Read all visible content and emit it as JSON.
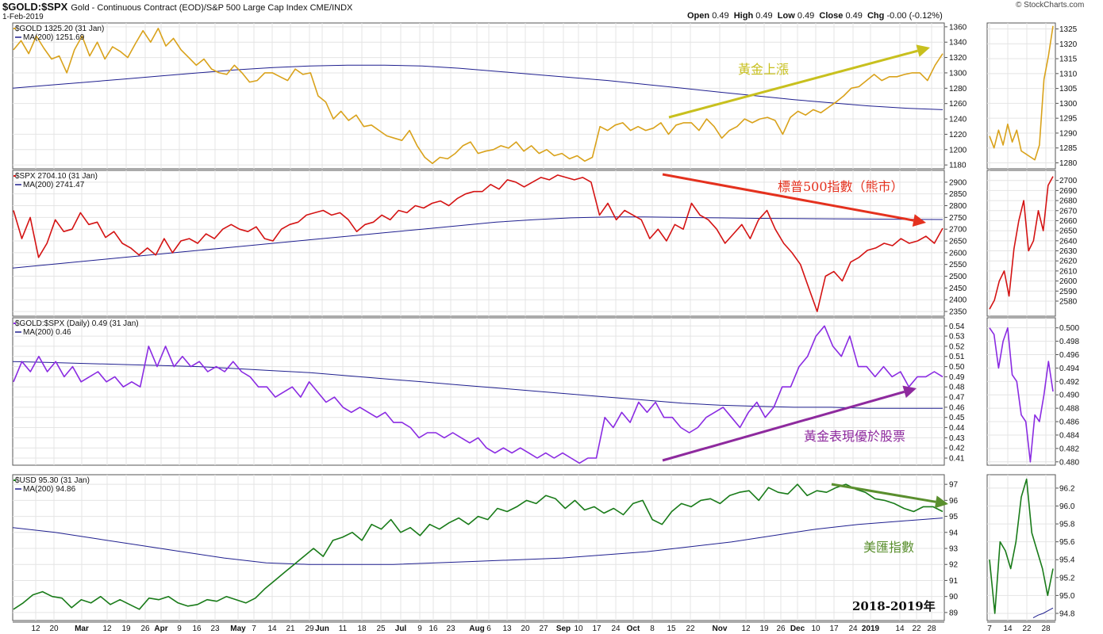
{
  "header": {
    "symbol": "$GOLD:$SPX",
    "description": "Gold - Continuous Contract (EOD)/S&P 500 Large Cap Index  CME/INDX",
    "date": "1-Feb-2019",
    "ohlc": {
      "open_label": "Open",
      "open": "0.49",
      "high_label": "High",
      "high": "0.49",
      "low_label": "Low",
      "low": "0.49",
      "close_label": "Close",
      "close": "0.49",
      "chg_label": "Chg",
      "chg": "-0.00 (-0.12%)"
    },
    "brand": "© StockCharts.com"
  },
  "chart_data": [
    {
      "type": "line",
      "id": "gold",
      "legend": [
        "$GOLD 1325.20 (31 Jan)",
        "MA(200) 1251.69"
      ],
      "ylim": [
        1175,
        1365
      ],
      "yticks": [
        1180,
        1200,
        1220,
        1240,
        1260,
        1280,
        1300,
        1320,
        1340,
        1360
      ],
      "inset_ylim": [
        1278,
        1327
      ],
      "inset_yticks": [
        1280,
        1285,
        1290,
        1295,
        1300,
        1305,
        1310,
        1315,
        1320,
        1325
      ],
      "colors": {
        "price": "#d9a21b",
        "ma": "#1f1f8f"
      },
      "price": [
        1330,
        1342,
        1325,
        1348,
        1332,
        1318,
        1322,
        1300,
        1330,
        1348,
        1322,
        1340,
        1318,
        1334,
        1328,
        1320,
        1338,
        1355,
        1340,
        1358,
        1335,
        1345,
        1330,
        1320,
        1310,
        1318,
        1305,
        1300,
        1298,
        1310,
        1300,
        1288,
        1290,
        1300,
        1300,
        1295,
        1290,
        1305,
        1298,
        1300,
        1270,
        1262,
        1240,
        1250,
        1238,
        1245,
        1230,
        1232,
        1225,
        1218,
        1215,
        1212,
        1225,
        1205,
        1190,
        1182,
        1190,
        1188,
        1195,
        1205,
        1210,
        1195,
        1198,
        1200,
        1205,
        1202,
        1210,
        1198,
        1205,
        1195,
        1200,
        1192,
        1195,
        1188,
        1192,
        1185,
        1190,
        1230,
        1225,
        1232,
        1235,
        1225,
        1230,
        1225,
        1228,
        1235,
        1220,
        1232,
        1235,
        1235,
        1225,
        1240,
        1230,
        1215,
        1225,
        1230,
        1240,
        1235,
        1240,
        1242,
        1238,
        1220,
        1242,
        1250,
        1245,
        1252,
        1248,
        1255,
        1262,
        1270,
        1280,
        1282,
        1290,
        1298,
        1290,
        1295,
        1295,
        1298,
        1300,
        1300,
        1290,
        1310,
        1325
      ],
      "ma": [
        1280,
        1284,
        1288,
        1292,
        1296,
        1300,
        1304,
        1307,
        1309,
        1310,
        1310,
        1309,
        1306,
        1302,
        1298,
        1294,
        1290,
        1285,
        1280,
        1275,
        1270,
        1265,
        1261,
        1257,
        1254,
        1252
      ],
      "inset_price": [
        1289,
        1285,
        1291,
        1286,
        1293,
        1287,
        1291,
        1284,
        1283,
        1282,
        1281,
        1286,
        1308,
        1316,
        1326
      ],
      "annotation": {
        "text": "黃金上漲",
        "color": "#c8c01e"
      }
    },
    {
      "type": "line",
      "id": "spx",
      "legend": [
        "$SPX 2704.10 (31 Jan)",
        "MA(200) 2741.47"
      ],
      "ylim": [
        2330,
        2950
      ],
      "yticks": [
        2350,
        2400,
        2450,
        2500,
        2550,
        2600,
        2650,
        2700,
        2750,
        2800,
        2850,
        2900
      ],
      "inset_ylim": [
        2565,
        2710
      ],
      "inset_yticks": [
        2580,
        2590,
        2600,
        2610,
        2620,
        2630,
        2640,
        2650,
        2660,
        2670,
        2680,
        2690,
        2700
      ],
      "colors": {
        "price": "#d41313",
        "ma": "#1f1f8f"
      },
      "price": [
        2780,
        2660,
        2750,
        2580,
        2640,
        2740,
        2690,
        2700,
        2770,
        2720,
        2730,
        2665,
        2690,
        2640,
        2620,
        2590,
        2620,
        2590,
        2660,
        2600,
        2650,
        2660,
        2640,
        2680,
        2660,
        2700,
        2720,
        2700,
        2690,
        2710,
        2660,
        2650,
        2700,
        2720,
        2730,
        2760,
        2770,
        2780,
        2760,
        2770,
        2740,
        2690,
        2720,
        2730,
        2760,
        2740,
        2780,
        2770,
        2800,
        2790,
        2810,
        2820,
        2800,
        2830,
        2850,
        2860,
        2860,
        2890,
        2870,
        2910,
        2900,
        2880,
        2900,
        2920,
        2910,
        2930,
        2920,
        2910,
        2920,
        2900,
        2760,
        2810,
        2740,
        2780,
        2760,
        2740,
        2660,
        2700,
        2650,
        2720,
        2700,
        2810,
        2760,
        2740,
        2700,
        2640,
        2680,
        2720,
        2660,
        2740,
        2780,
        2700,
        2640,
        2600,
        2550,
        2450,
        2350,
        2500,
        2520,
        2480,
        2560,
        2580,
        2610,
        2620,
        2640,
        2630,
        2660,
        2640,
        2650,
        2670,
        2640,
        2704
      ],
      "ma": [
        2535,
        2550,
        2565,
        2580,
        2595,
        2610,
        2625,
        2640,
        2655,
        2670,
        2685,
        2700,
        2715,
        2730,
        2740,
        2748,
        2752,
        2752,
        2750,
        2748,
        2746,
        2745,
        2744,
        2743,
        2742,
        2741
      ],
      "inset_price": [
        2572,
        2581,
        2600,
        2610,
        2585,
        2632,
        2660,
        2680,
        2630,
        2640,
        2670,
        2650,
        2695,
        2704
      ],
      "annotation": {
        "text": "標普500指數（熊市）",
        "color": "#e4311e"
      }
    },
    {
      "type": "line",
      "id": "ratio",
      "legend": [
        "$GOLD:$SPX (Daily) 0.49 (31 Jan)",
        "MA(200) 0.46"
      ],
      "ylim": [
        0.403,
        0.548
      ],
      "yticks": [
        0.41,
        0.42,
        0.43,
        0.44,
        0.45,
        0.46,
        0.47,
        0.48,
        0.49,
        0.5,
        0.51,
        0.52,
        0.53,
        0.54
      ],
      "inset_ylim": [
        0.4795,
        0.5015
      ],
      "inset_yticks": [
        0.48,
        0.482,
        0.484,
        0.486,
        0.488,
        0.49,
        0.492,
        0.494,
        0.496,
        0.498,
        0.5
      ],
      "colors": {
        "price": "#8a2be2",
        "ma": "#1f1f8f"
      },
      "price": [
        0.485,
        0.505,
        0.495,
        0.51,
        0.495,
        0.505,
        0.49,
        0.5,
        0.485,
        0.49,
        0.495,
        0.485,
        0.49,
        0.48,
        0.485,
        0.48,
        0.52,
        0.5,
        0.52,
        0.5,
        0.51,
        0.5,
        0.505,
        0.495,
        0.5,
        0.495,
        0.505,
        0.495,
        0.49,
        0.48,
        0.48,
        0.47,
        0.475,
        0.48,
        0.47,
        0.485,
        0.475,
        0.465,
        0.47,
        0.46,
        0.455,
        0.46,
        0.455,
        0.45,
        0.455,
        0.445,
        0.445,
        0.44,
        0.43,
        0.435,
        0.435,
        0.43,
        0.435,
        0.43,
        0.425,
        0.43,
        0.42,
        0.415,
        0.42,
        0.415,
        0.42,
        0.415,
        0.41,
        0.415,
        0.41,
        0.415,
        0.41,
        0.405,
        0.41,
        0.41,
        0.45,
        0.44,
        0.455,
        0.445,
        0.465,
        0.455,
        0.465,
        0.45,
        0.45,
        0.44,
        0.435,
        0.44,
        0.45,
        0.455,
        0.46,
        0.45,
        0.44,
        0.455,
        0.465,
        0.45,
        0.46,
        0.48,
        0.48,
        0.5,
        0.51,
        0.53,
        0.54,
        0.52,
        0.51,
        0.53,
        0.5,
        0.5,
        0.49,
        0.5,
        0.49,
        0.495,
        0.48,
        0.49,
        0.49,
        0.495,
        0.49
      ],
      "ma": [
        0.505,
        0.504,
        0.503,
        0.502,
        0.501,
        0.5,
        0.498,
        0.496,
        0.494,
        0.491,
        0.488,
        0.485,
        0.482,
        0.479,
        0.476,
        0.473,
        0.47,
        0.467,
        0.464,
        0.462,
        0.461,
        0.46,
        0.46,
        0.459,
        0.459,
        0.459
      ],
      "inset_price": [
        0.5,
        0.499,
        0.494,
        0.498,
        0.5,
        0.493,
        0.492,
        0.487,
        0.486,
        0.48,
        0.487,
        0.486,
        0.49,
        0.495,
        0.4905
      ],
      "annotation": {
        "text": "黃金表現優於股票",
        "color": "#8e2a9e"
      }
    },
    {
      "type": "line",
      "id": "usd",
      "legend": [
        "$USD 95.30 (31 Jan)",
        "MA(200) 94.86"
      ],
      "ylim": [
        88.5,
        97.6
      ],
      "yticks": [
        89,
        90,
        91,
        92,
        93,
        94,
        95,
        96,
        97
      ],
      "inset_ylim": [
        94.72,
        96.35
      ],
      "inset_yticks": [
        94.8,
        95.0,
        95.2,
        95.4,
        95.6,
        95.8,
        96.0,
        96.2
      ],
      "colors": {
        "price": "#197b19",
        "ma": "#1f1f8f"
      },
      "price": [
        89.2,
        89.6,
        90.1,
        90.3,
        90.0,
        89.9,
        89.3,
        89.8,
        89.6,
        90.0,
        89.5,
        89.8,
        89.5,
        89.2,
        89.9,
        89.8,
        90.0,
        89.6,
        89.4,
        89.5,
        89.8,
        89.7,
        90.0,
        89.8,
        89.6,
        89.9,
        90.5,
        91.0,
        91.5,
        92.0,
        92.5,
        93.0,
        92.5,
        93.5,
        93.7,
        94.0,
        93.5,
        94.5,
        94.2,
        94.8,
        94.0,
        94.3,
        93.8,
        94.5,
        94.2,
        94.6,
        94.9,
        94.5,
        95.0,
        94.8,
        95.5,
        95.3,
        95.6,
        96.0,
        95.8,
        96.3,
        96.1,
        95.5,
        96.0,
        95.4,
        95.6,
        95.2,
        95.5,
        95.1,
        95.8,
        96.0,
        94.8,
        94.5,
        95.3,
        95.8,
        95.6,
        96.0,
        96.1,
        95.8,
        96.3,
        96.5,
        96.6,
        96.0,
        96.8,
        96.5,
        96.4,
        97.0,
        96.3,
        96.6,
        96.5,
        96.8,
        97.0,
        96.7,
        96.5,
        96.1,
        96.0,
        95.8,
        95.5,
        95.3,
        95.6,
        95.6,
        95.3
      ],
      "ma": [
        94.3,
        94.0,
        93.6,
        93.2,
        92.8,
        92.4,
        92.1,
        92.0,
        92.0,
        92.0,
        92.1,
        92.2,
        92.3,
        92.4,
        92.6,
        92.8,
        93.1,
        93.4,
        93.8,
        94.2,
        94.5,
        94.7,
        94.9
      ],
      "inset_price": [
        95.4,
        94.8,
        95.6,
        95.5,
        95.3,
        95.6,
        96.1,
        96.3,
        95.7,
        95.5,
        95.3,
        95.0,
        95.3
      ],
      "inset_ma": [
        94.75,
        94.78,
        94.8,
        94.83,
        94.86
      ],
      "annotation": {
        "text": "美匯指數",
        "color": "#5a8f2e"
      },
      "note": "2018-2019年"
    }
  ],
  "x_axis": {
    "labels": [
      "12",
      "20",
      "Mar",
      "12",
      "19",
      "26",
      "Apr",
      "9",
      "16",
      "23",
      "May",
      "7",
      "14",
      "21",
      "29",
      "Jun",
      "11",
      "18",
      "25",
      "Jul",
      "9",
      "16",
      "23",
      "Aug",
      "6",
      "13",
      "20",
      "27",
      "Sep",
      "10",
      "17",
      "24",
      "Oct",
      "8",
      "15",
      "22",
      "Nov",
      "12",
      "19",
      "26",
      "Dec",
      "10",
      "17",
      "24",
      "2019",
      "14",
      "22",
      "28"
    ],
    "bold": [
      "Mar",
      "Apr",
      "May",
      "Jun",
      "Jul",
      "Aug",
      "Sep",
      "Oct",
      "Nov",
      "Dec",
      "2019"
    ],
    "inset_labels": [
      "7",
      "14",
      "22",
      "28"
    ]
  }
}
